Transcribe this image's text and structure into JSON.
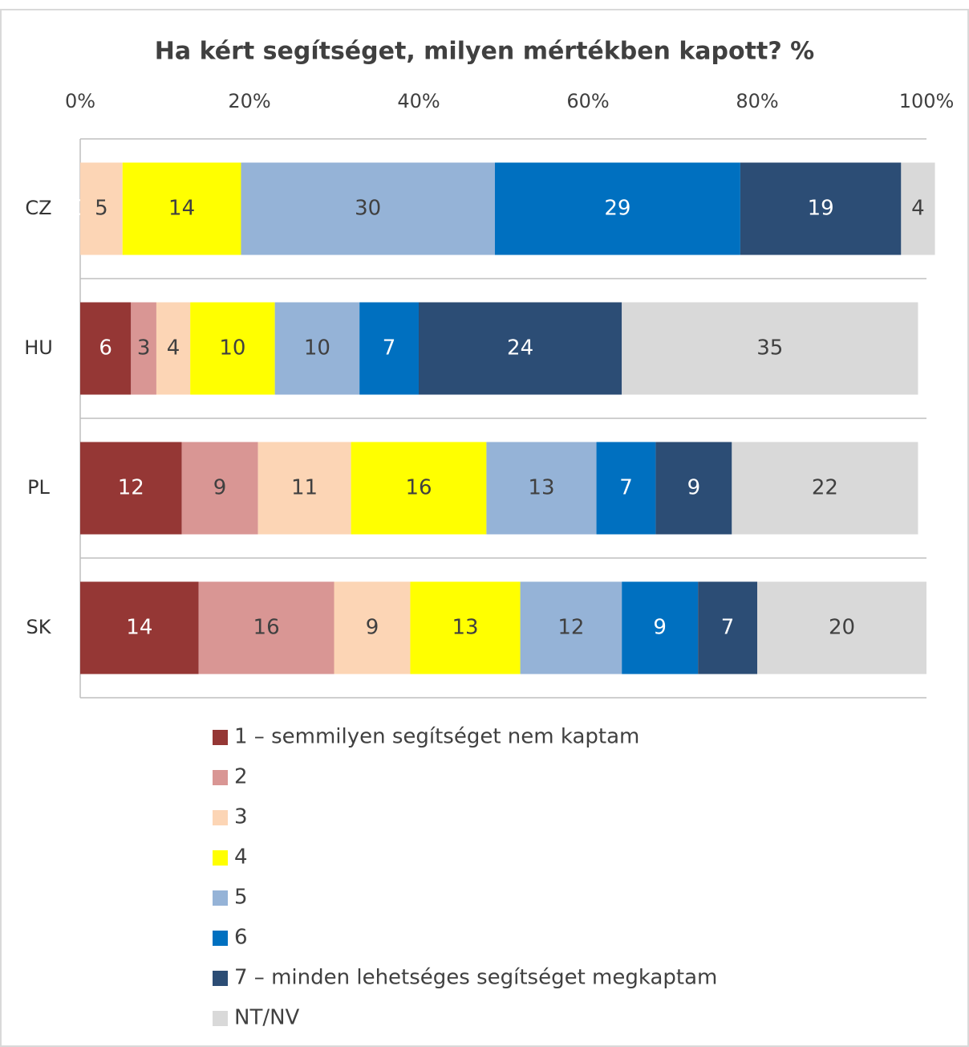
{
  "chart_data": {
    "type": "stacked-bar-horizontal",
    "title": "Ha kért segítséget, milyen mértékben kapott? %",
    "categories": [
      "CZ",
      "HU",
      "PL",
      "SK"
    ],
    "series": [
      {
        "name": "1 – semmilyen segítséget nem kaptam",
        "color": "#953735",
        "values": [
          0,
          6,
          12,
          14
        ]
      },
      {
        "name": "2",
        "color": "#d99694",
        "values": [
          null,
          3,
          9,
          16
        ]
      },
      {
        "name": "3",
        "color": "#fcd5b5",
        "values": [
          5,
          4,
          11,
          9
        ]
      },
      {
        "name": "4",
        "color": "#ffff00",
        "values": [
          14,
          10,
          16,
          13
        ]
      },
      {
        "name": "5",
        "color": "#95b3d7",
        "values": [
          30,
          10,
          13,
          12
        ]
      },
      {
        "name": "6",
        "color": "#0070c0",
        "values": [
          29,
          7,
          7,
          9
        ]
      },
      {
        "name": "7 – minden lehetséges segítséget megkaptam",
        "color": "#2c4d75",
        "values": [
          19,
          24,
          9,
          7
        ]
      },
      {
        "name": "NT/NV",
        "color": "#d9d9d9",
        "values": [
          4,
          35,
          22,
          20
        ]
      }
    ],
    "xlim": [
      0,
      100
    ],
    "xticks": [
      {
        "value": 0,
        "label": "0%"
      },
      {
        "value": 20,
        "label": "20%"
      },
      {
        "value": 40,
        "label": "40%"
      },
      {
        "value": 60,
        "label": "60%"
      },
      {
        "value": 80,
        "label": "80%"
      },
      {
        "value": 100,
        "label": "100%"
      }
    ],
    "legend": "bottom"
  }
}
